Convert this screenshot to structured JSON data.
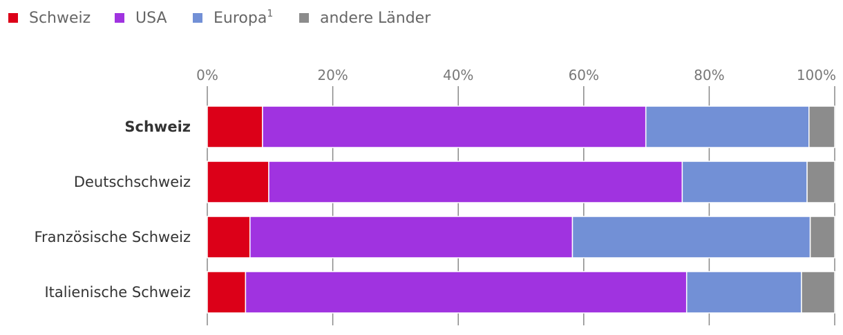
{
  "chart_data": {
    "type": "bar",
    "orientation": "horizontal",
    "stacked": true,
    "categories": [
      "Schweiz",
      "Deutschschweiz",
      "Französische Schweiz",
      "Italienische Schweiz"
    ],
    "highlighted_category": "Schweiz",
    "series": [
      {
        "name": "Schweiz",
        "name_base": "Schweiz",
        "name_sup": "",
        "color": "#dc0018",
        "values": [
          8.8,
          9.8,
          6.8,
          6.1
        ]
      },
      {
        "name": "USA",
        "name_base": "USA",
        "name_sup": "",
        "color": "#a033e0",
        "values": [
          61.1,
          65.9,
          51.4,
          70.3
        ]
      },
      {
        "name": "Europa¹",
        "name_base": "Europa",
        "name_sup": "1",
        "color": "#7290d6",
        "values": [
          26.0,
          19.9,
          37.9,
          18.3
        ]
      },
      {
        "name": "andere Länder",
        "name_base": "andere Länder",
        "name_sup": "",
        "color": "#8c8c8c",
        "values": [
          4.1,
          4.4,
          3.9,
          5.3
        ]
      }
    ],
    "xlim": [
      0,
      100
    ],
    "ticks": [
      "0%",
      "20%",
      "40%",
      "60%",
      "80%",
      "100%"
    ],
    "tick_values": [
      0,
      20,
      40,
      60,
      80,
      100
    ],
    "grid": true,
    "legend_position": "top-left",
    "title": "",
    "xlabel": "",
    "ylabel": ""
  }
}
